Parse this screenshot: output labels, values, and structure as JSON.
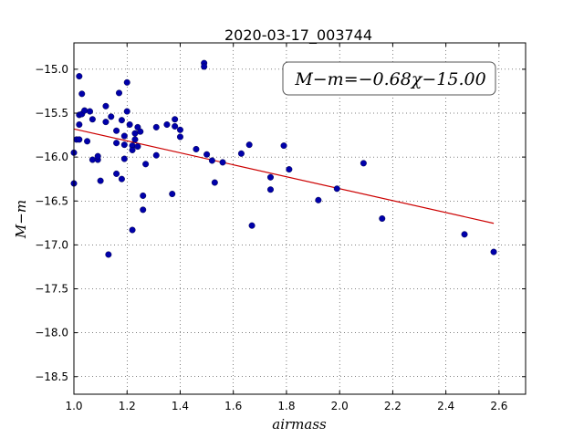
{
  "chart_data": {
    "type": "scatter",
    "title": "2020-03-17_003744",
    "xlabel": "airmass",
    "ylabel": "M−m",
    "xlim": [
      1.0,
      2.7
    ],
    "ylim": [
      -18.7,
      -14.7
    ],
    "y_inverted": true,
    "grid": true,
    "x_ticks": [
      1.0,
      1.2,
      1.4,
      1.6,
      1.8,
      2.0,
      2.2,
      2.4,
      2.6
    ],
    "x_tick_labels": [
      "1.0",
      "1.2",
      "1.4",
      "1.6",
      "1.8",
      "2.0",
      "2.2",
      "2.4",
      "2.6"
    ],
    "y_ticks": [
      -15.0,
      -15.5,
      -16.0,
      -16.5,
      -17.0,
      -17.5,
      -18.0,
      -18.5
    ],
    "y_tick_labels": [
      "−15.0",
      "−15.5",
      "−16.0",
      "−16.5",
      "−17.0",
      "−17.5",
      "−18.0",
      "−18.5"
    ],
    "annotation": "M−m=−0.68χ−15.00",
    "fit": {
      "slope": -0.68,
      "intercept": -15.0,
      "x_range": [
        1.0,
        2.58
      ],
      "color": "#cc0000"
    },
    "point_color": "#0000aa",
    "points": [
      [
        1.0,
        -15.95
      ],
      [
        1.0,
        -16.3
      ],
      [
        1.01,
        -15.8
      ],
      [
        1.02,
        -15.08
      ],
      [
        1.02,
        -15.52
      ],
      [
        1.02,
        -15.63
      ],
      [
        1.02,
        -15.8
      ],
      [
        1.03,
        -15.28
      ],
      [
        1.03,
        -15.51
      ],
      [
        1.04,
        -15.47
      ],
      [
        1.05,
        -15.82
      ],
      [
        1.06,
        -15.48
      ],
      [
        1.07,
        -15.57
      ],
      [
        1.07,
        -16.03
      ],
      [
        1.09,
        -16.03
      ],
      [
        1.09,
        -15.99
      ],
      [
        1.1,
        -16.27
      ],
      [
        1.12,
        -15.42
      ],
      [
        1.12,
        -15.6
      ],
      [
        1.13,
        -17.11
      ],
      [
        1.14,
        -15.54
      ],
      [
        1.16,
        -15.84
      ],
      [
        1.16,
        -15.7
      ],
      [
        1.16,
        -16.19
      ],
      [
        1.17,
        -15.27
      ],
      [
        1.18,
        -16.25
      ],
      [
        1.18,
        -15.58
      ],
      [
        1.19,
        -15.76
      ],
      [
        1.19,
        -15.86
      ],
      [
        1.19,
        -16.02
      ],
      [
        1.2,
        -15.15
      ],
      [
        1.2,
        -15.48
      ],
      [
        1.21,
        -15.63
      ],
      [
        1.22,
        -15.87
      ],
      [
        1.22,
        -15.92
      ],
      [
        1.22,
        -16.83
      ],
      [
        1.23,
        -15.8
      ],
      [
        1.23,
        -15.73
      ],
      [
        1.24,
        -15.66
      ],
      [
        1.24,
        -15.88
      ],
      [
        1.25,
        -15.71
      ],
      [
        1.26,
        -16.44
      ],
      [
        1.26,
        -16.6
      ],
      [
        1.27,
        -16.08
      ],
      [
        1.31,
        -15.66
      ],
      [
        1.31,
        -15.98
      ],
      [
        1.35,
        -15.63
      ],
      [
        1.37,
        -16.42
      ],
      [
        1.38,
        -15.57
      ],
      [
        1.38,
        -15.65
      ],
      [
        1.4,
        -15.69
      ],
      [
        1.4,
        -15.77
      ],
      [
        1.46,
        -15.91
      ],
      [
        1.49,
        -14.93
      ],
      [
        1.49,
        -14.97
      ],
      [
        1.5,
        -15.97
      ],
      [
        1.52,
        -16.04
      ],
      [
        1.53,
        -16.29
      ],
      [
        1.56,
        -16.06
      ],
      [
        1.63,
        -15.96
      ],
      [
        1.66,
        -15.86
      ],
      [
        1.67,
        -16.78
      ],
      [
        1.74,
        -16.23
      ],
      [
        1.74,
        -16.37
      ],
      [
        1.79,
        -15.87
      ],
      [
        1.81,
        -16.14
      ],
      [
        1.92,
        -16.49
      ],
      [
        1.99,
        -16.36
      ],
      [
        2.09,
        -16.07
      ],
      [
        2.16,
        -16.7
      ],
      [
        2.47,
        -16.88
      ],
      [
        2.58,
        -17.08
      ]
    ]
  }
}
